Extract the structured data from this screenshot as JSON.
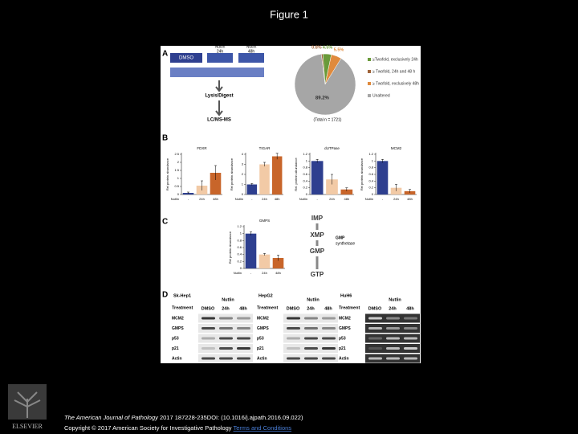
{
  "title": "Figure 1",
  "figure": {
    "panel_a": {
      "letter": "A",
      "samples": [
        {
          "top": "DMSO"
        },
        {
          "top": "Nutlin",
          "bottom": "24h"
        },
        {
          "top": "Nutlin",
          "bottom": "48h"
        }
      ],
      "steps": [
        "Lysis/Digest",
        "LC/MS-MS"
      ],
      "pie": {
        "type": "pie",
        "values": [
          4.5,
          0.8,
          5.5,
          89.2
        ],
        "value_labels": [
          "4.5%",
          "0.8%",
          "5.5%",
          "89.2%"
        ],
        "colors": [
          "#6a9a3a",
          "#a0643a",
          "#e08a3c",
          "#a6a6a6"
        ],
        "legend": [
          "≥Twofold, exclusively 24h",
          "≥ Twofold, 24h and 48 h",
          "≥ Twofold, exclusively 48h",
          "Unaltered"
        ],
        "total": "(Total n = 1721)"
      }
    },
    "panel_b": {
      "letter": "B",
      "charts": [
        {
          "type": "bar",
          "title": "FDXR",
          "y_label": "Rel protein abundance",
          "row_label": "Nutlin",
          "categories": [
            "-",
            "24h",
            "48h"
          ],
          "values": [
            0.1,
            0.55,
            1.35
          ],
          "errors": [
            0.05,
            0.3,
            0.45
          ],
          "colors": [
            "#2e3f8f",
            "#f2caa6",
            "#c8652a"
          ],
          "ylim": [
            0,
            2.5
          ],
          "yticks": [
            0,
            0.5,
            1,
            1.5,
            2,
            2.5
          ]
        },
        {
          "type": "bar",
          "title": "TIGAR",
          "y_label": "Rel protein abundance",
          "row_label": "Nutlin",
          "categories": [
            "-",
            "24h",
            "48h"
          ],
          "values": [
            1,
            3,
            3.8
          ],
          "errors": [
            0.1,
            0.2,
            0.3
          ],
          "colors": [
            "#2e3f8f",
            "#f2caa6",
            "#c8652a"
          ],
          "ylim": [
            0,
            4
          ],
          "yticks": [
            0,
            1,
            2,
            3,
            4
          ]
        },
        {
          "type": "bar",
          "title": "dUTPase",
          "y_label": "Rel. protein abundance",
          "row_label": "Nutlin",
          "categories": [
            "-",
            "24h",
            "48h"
          ],
          "values": [
            1,
            0.45,
            0.15
          ],
          "errors": [
            0.05,
            0.15,
            0.05
          ],
          "colors": [
            "#2e3f8f",
            "#f2caa6",
            "#c8652a"
          ],
          "ylim": [
            0,
            1.2
          ],
          "yticks": [
            0,
            0.2,
            0.4,
            0.6,
            0.8,
            1,
            1.2
          ]
        },
        {
          "type": "bar",
          "title": "MCM2",
          "y_label": "Rel protein abundance",
          "row_label": "Nutlin",
          "categories": [
            "-",
            "24h",
            "48h"
          ],
          "values": [
            1,
            0.2,
            0.1
          ],
          "errors": [
            0.05,
            0.1,
            0.05
          ],
          "colors": [
            "#2e3f8f",
            "#f2caa6",
            "#c8652a"
          ],
          "ylim": [
            0,
            1.2
          ],
          "yticks": [
            0,
            0.2,
            0.4,
            0.6,
            0.8,
            1,
            1.2
          ]
        }
      ]
    },
    "panel_c": {
      "letter": "C",
      "chart": {
        "type": "bar",
        "title": "GMPS",
        "y_label": "Rel protein abundance",
        "row_label": "Nutlin",
        "categories": [
          "-",
          "24h",
          "48h"
        ],
        "values": [
          1,
          0.4,
          0.3
        ],
        "errors": [
          0.05,
          0.03,
          0.08
        ],
        "colors": [
          "#2e3f8f",
          "#f2caa6",
          "#c8652a"
        ],
        "ylim": [
          0,
          1.2
        ],
        "yticks": [
          0,
          0.2,
          0.4,
          0.6,
          0.8,
          1,
          1.2
        ]
      },
      "pathway": [
        "IMP",
        "XMP",
        "GMP",
        "GTP"
      ],
      "enzyme": [
        "GMP",
        "synthetase"
      ]
    },
    "panel_d": {
      "letter": "D",
      "cell_lines": [
        "Sk-Hep1",
        "HepG2",
        "HuH6"
      ],
      "nutlin_label": "Nutlin",
      "treatment_label": "Treatment",
      "lanes": [
        "DMSO",
        "24h",
        "48h"
      ],
      "proteins": [
        "MCM2",
        "GMPS",
        "p53",
        "p21",
        "Actin"
      ]
    }
  },
  "footer": {
    "journal": "The American Journal of Pathology",
    "citation": "2017 187228-235DOI: (10.1016/j.ajpath.2016.09.022)",
    "copyright": "Copyright © 2017 American Society for Investigative Pathology",
    "link": "Terms and Conditions",
    "logo": "ELSEVIER"
  }
}
